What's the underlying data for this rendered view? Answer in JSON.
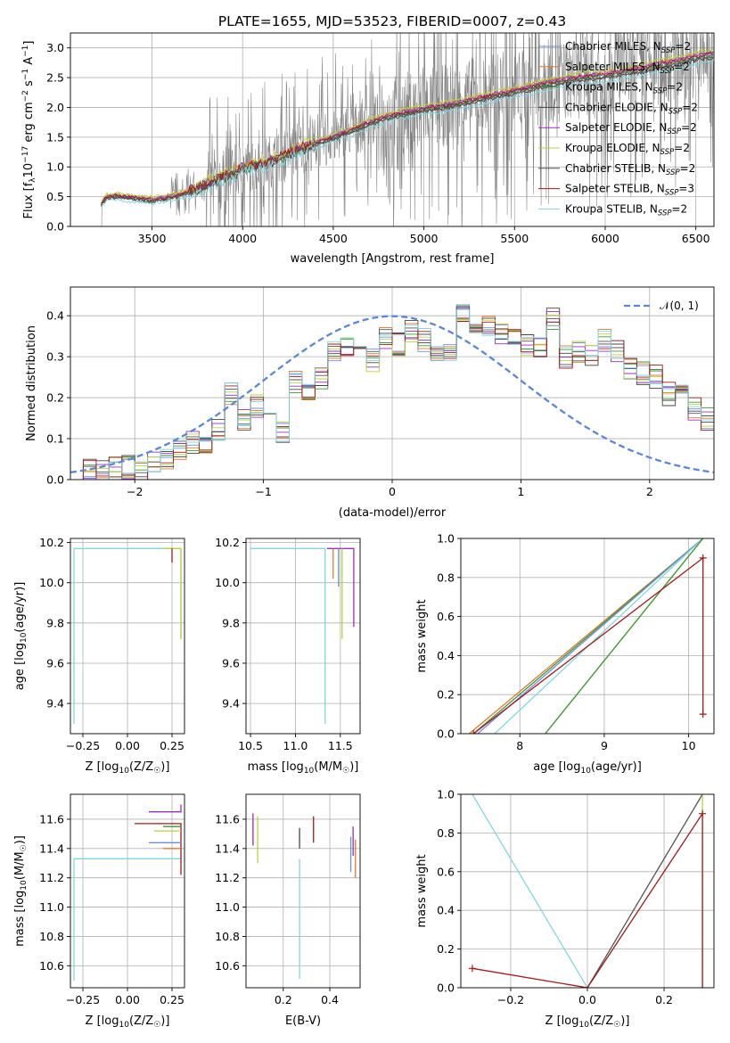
{
  "palette": [
    "#6f8fe0",
    "#e0782a",
    "#3a9a3a",
    "#444444",
    "#9a2ec0",
    "#bcd23a",
    "#555555",
    "#a31919",
    "#7fd8e0"
  ],
  "chart_data": [
    {
      "id": "spectrum",
      "type": "line",
      "title": "PLATE=1655, MJD=53523, FIBERID=0007, z=0.43",
      "xlabel": "wavelength [Angstrom, rest frame]",
      "ylabel": "Flux [f",
      "ylabel_parts": [
        "Flux [f",
        "λ",
        "10",
        "−17",
        " erg cm",
        "−2",
        " s",
        "−1",
        " A",
        "−1",
        "]"
      ],
      "xlim": [
        3050,
        6600
      ],
      "ylim": [
        0,
        3.25
      ],
      "xticks": [
        3500,
        4000,
        4500,
        5000,
        5500,
        6000,
        6500
      ],
      "yticks": [
        0.0,
        0.5,
        1.0,
        1.5,
        2.0,
        2.5,
        3.0
      ],
      "xtick_labels": [
        "3500",
        "4000",
        "4500",
        "5000",
        "5500",
        "6000",
        "6500"
      ],
      "ytick_labels": [
        "0.0",
        "0.5",
        "1.0",
        "1.5",
        "2.0",
        "2.5",
        "3.0"
      ],
      "legend_position": "upper-right",
      "legend": [
        {
          "label": "Chabrier MILES, N",
          "sub": "SSP",
          "suffix": "=2",
          "color": "#6f8fe0"
        },
        {
          "label": "Salpeter MILES, N",
          "sub": "SSP",
          "suffix": "=2",
          "color": "#e0782a"
        },
        {
          "label": "Kroupa MILES, N",
          "sub": "SSP",
          "suffix": "=2",
          "color": "#3a9a3a"
        },
        {
          "label": "Chabrier ELODIE, N",
          "sub": "SSP",
          "suffix": "=2",
          "color": "#444444"
        },
        {
          "label": "Salpeter ELODIE, N",
          "sub": "SSP",
          "suffix": "=2",
          "color": "#9a2ec0"
        },
        {
          "label": "Kroupa ELODIE, N",
          "sub": "SSP",
          "suffix": "=2",
          "color": "#bcd23a"
        },
        {
          "label": "Chabrier STELIB, N",
          "sub": "SSP",
          "suffix": "=2",
          "color": "#555555"
        },
        {
          "label": "Salpeter STELIB, N",
          "sub": "SSP",
          "suffix": "=3",
          "color": "#a31919"
        },
        {
          "label": "Kroupa STELIB, N",
          "sub": "SSP",
          "suffix": "=2",
          "color": "#7fd8e0"
        }
      ],
      "data_series": {
        "name": "",
        "color": "#808080",
        "x_range": [
          3220,
          6600
        ]
      },
      "model_continuum": {
        "x": [
          3220,
          3250,
          3300,
          3400,
          3500,
          3600,
          3700,
          3800,
          3850,
          3900,
          3950,
          4000,
          4100,
          4200,
          4300,
          4400,
          4500,
          4600,
          4700,
          4800,
          4900,
          5000,
          5100,
          5200,
          5300,
          5400,
          5500,
          5600,
          5700,
          5800,
          5900,
          6000,
          6100,
          6200,
          6300,
          6400,
          6500,
          6600
        ],
        "y": [
          0.4,
          0.5,
          0.52,
          0.48,
          0.45,
          0.5,
          0.58,
          0.72,
          0.78,
          0.85,
          0.9,
          0.98,
          1.05,
          1.15,
          1.3,
          1.4,
          1.5,
          1.62,
          1.75,
          1.85,
          1.92,
          1.98,
          2.02,
          2.08,
          2.15,
          2.22,
          2.28,
          2.35,
          2.42,
          2.48,
          2.52,
          2.55,
          2.6,
          2.65,
          2.72,
          2.78,
          2.85,
          2.9
        ]
      }
    },
    {
      "id": "residuals",
      "type": "bar",
      "xlabel": "(data-model)/error",
      "ylabel": "Normed distribution",
      "xlim": [
        -2.5,
        2.5
      ],
      "ylim": [
        0,
        0.47
      ],
      "xticks": [
        -2,
        -1,
        0,
        1,
        2
      ],
      "yticks": [
        0.0,
        0.1,
        0.2,
        0.3,
        0.4
      ],
      "xtick_labels": [
        "−2",
        "−1",
        "0",
        "1",
        "2"
      ],
      "ytick_labels": [
        "0.0",
        "0.1",
        "0.2",
        "0.3",
        "0.4"
      ],
      "legend_position": "upper-right",
      "legend": [
        {
          "label": "𝒩(0, 1)",
          "color": "#5b87d6",
          "style": "dashed"
        }
      ],
      "bin_width": 0.1,
      "bin_start": -2.5,
      "values": [
        0.02,
        0.02,
        0.025,
        0.03,
        0.03,
        0.02,
        0.04,
        0.05,
        0.07,
        0.09,
        0.08,
        0.12,
        0.21,
        0.15,
        0.18,
        0.16,
        0.12,
        0.24,
        0.21,
        0.25,
        0.31,
        0.33,
        0.32,
        0.29,
        0.35,
        0.33,
        0.36,
        0.34,
        0.32,
        0.31,
        0.4,
        0.35,
        0.37,
        0.36,
        0.34,
        0.33,
        0.32,
        0.39,
        0.3,
        0.31,
        0.3,
        0.34,
        0.31,
        0.27,
        0.26,
        0.25,
        0.21,
        0.22,
        0.17,
        0.15
      ]
    },
    {
      "id": "age-vs-Z",
      "type": "line",
      "xlabel": "Z [log",
      "xlabel_parts": [
        "Z [log",
        "10",
        "(Z/Z",
        "☉",
        ")]"
      ],
      "ylabel_parts": [
        "age  [log",
        "10",
        "(age/yr)]"
      ],
      "xlim": [
        -0.32,
        0.32
      ],
      "ylim": [
        9.25,
        10.22
      ],
      "xticks": [
        -0.25,
        0.0,
        0.25
      ],
      "yticks": [
        9.4,
        9.6,
        9.8,
        10.0,
        10.2
      ],
      "xtick_labels": [
        "−0.25",
        "0.00",
        "0.25"
      ],
      "ytick_labels": [
        "9.4",
        "9.6",
        "9.8",
        "10.0",
        "10.2"
      ],
      "series": [
        {
          "name": "",
          "color": "#7fd8e0",
          "x": [
            -0.3,
            -0.3,
            0.3,
            0.3
          ],
          "y": [
            9.3,
            10.17,
            10.17,
            9.72
          ]
        },
        {
          "name": "",
          "color": "#bcd23a",
          "x": [
            0.2,
            0.3,
            0.3
          ],
          "y": [
            10.17,
            10.17,
            9.72
          ]
        },
        {
          "name": "",
          "color": "#a31919",
          "x": [
            0.25,
            0.25
          ],
          "y": [
            10.17,
            10.1
          ]
        }
      ]
    },
    {
      "id": "age-vs-mass",
      "type": "line",
      "xlabel_parts": [
        "mass [log",
        "10",
        "(M/M",
        "☉",
        ")]"
      ],
      "xlim": [
        10.45,
        11.72
      ],
      "ylim": [
        9.25,
        10.22
      ],
      "xticks": [
        10.5,
        11.0,
        11.5
      ],
      "yticks": [
        9.4,
        9.6,
        9.8,
        10.0,
        10.2
      ],
      "xtick_labels": [
        "10.5",
        "11.0",
        "11.5"
      ],
      "ytick_labels": [
        "9.4",
        "9.6",
        "9.8",
        "10.0",
        "10.2"
      ],
      "series": [
        {
          "name": "",
          "color": "#7fd8e0",
          "x": [
            10.5,
            11.33,
            11.33
          ],
          "y": [
            10.17,
            10.17,
            9.3
          ]
        },
        {
          "name": "",
          "color": "#9a2ec0",
          "x": [
            11.35,
            11.65,
            11.65
          ],
          "y": [
            10.17,
            10.17,
            9.78
          ]
        },
        {
          "name": "",
          "color": "#bcd23a",
          "x": [
            11.52,
            11.52
          ],
          "y": [
            10.17,
            9.72
          ]
        },
        {
          "name": "",
          "color": "#e0782a",
          "x": [
            11.42,
            11.42
          ],
          "y": [
            10.17,
            10.02
          ]
        },
        {
          "name": "",
          "color": "#6f8fe0",
          "x": [
            11.48,
            11.48
          ],
          "y": [
            10.17,
            9.98
          ]
        }
      ]
    },
    {
      "id": "massweight-vs-age",
      "type": "line",
      "xlabel_parts": [
        "age  [log",
        "10",
        "(age/yr)]"
      ],
      "ylabel": "mass weight",
      "xlim": [
        7.3,
        10.3
      ],
      "ylim": [
        0,
        1
      ],
      "xticks": [
        8,
        9,
        10
      ],
      "yticks": [
        0.0,
        0.2,
        0.4,
        0.6,
        0.8,
        1.0
      ],
      "xtick_labels": [
        "8",
        "9",
        "10"
      ],
      "ytick_labels": [
        "0.0",
        "0.2",
        "0.4",
        "0.6",
        "0.8",
        "1.0"
      ],
      "series": [
        {
          "name": "",
          "color": "#e0782a",
          "x": [
            7.4,
            10.17
          ],
          "y": [
            0,
            1
          ]
        },
        {
          "name": "",
          "color": "#3a9a3a",
          "x": [
            7.45,
            10.17
          ],
          "y": [
            0,
            1
          ]
        },
        {
          "name": "",
          "color": "#6f8fe0",
          "x": [
            7.5,
            10.17
          ],
          "y": [
            0,
            1
          ]
        },
        {
          "name": "",
          "color": "#7fd8e0",
          "x": [
            7.7,
            10.17
          ],
          "y": [
            0,
            1
          ]
        },
        {
          "name": "",
          "color": "#bcd23a",
          "x": [
            8.3,
            10.17
          ],
          "y": [
            0,
            1
          ]
        },
        {
          "name": "",
          "color": "#3a9a3a",
          "x": [
            8.3,
            10.17
          ],
          "y": [
            0,
            1
          ]
        },
        {
          "name": "",
          "color": "#a31919",
          "x": [
            7.45,
            10.17,
            10.17
          ],
          "y": [
            0,
            0.9,
            0.1
          ]
        }
      ]
    },
    {
      "id": "mass-vs-Z",
      "type": "line",
      "xlabel_parts": [
        "Z [log",
        "10",
        "(Z/Z",
        "☉",
        ")]"
      ],
      "ylabel_parts": [
        "mass [log",
        "10",
        "(M/M",
        "☉",
        ")]"
      ],
      "xlim": [
        -0.32,
        0.32
      ],
      "ylim": [
        10.45,
        11.77
      ],
      "xticks": [
        -0.25,
        0.0,
        0.25
      ],
      "yticks": [
        10.6,
        10.8,
        11.0,
        11.2,
        11.4,
        11.6
      ],
      "xtick_labels": [
        "−0.25",
        "0.00",
        "0.25"
      ],
      "ytick_labels": [
        "10.6",
        "10.8",
        "11.0",
        "11.2",
        "11.4",
        "11.6"
      ],
      "series": [
        {
          "name": "",
          "color": "#7fd8e0",
          "x": [
            -0.3,
            -0.3,
            0.3
          ],
          "y": [
            10.5,
            11.33,
            11.33
          ]
        },
        {
          "name": "",
          "color": "#9a2ec0",
          "x": [
            0.12,
            0.3,
            0.3
          ],
          "y": [
            11.65,
            11.65,
            11.7
          ]
        },
        {
          "name": "",
          "color": "#a31919",
          "x": [
            0.04,
            0.3,
            0.3
          ],
          "y": [
            11.57,
            11.57,
            11.22
          ]
        },
        {
          "name": "",
          "color": "#6f8fe0",
          "x": [
            0.12,
            0.3
          ],
          "y": [
            11.44,
            11.44
          ]
        },
        {
          "name": "",
          "color": "#e0782a",
          "x": [
            0.2,
            0.3
          ],
          "y": [
            11.4,
            11.4
          ]
        },
        {
          "name": "",
          "color": "#3a9a3a",
          "x": [
            0.2,
            0.3
          ],
          "y": [
            11.55,
            11.55
          ]
        },
        {
          "name": "",
          "color": "#bcd23a",
          "x": [
            0.15,
            0.3
          ],
          "y": [
            11.52,
            11.52
          ]
        }
      ]
    },
    {
      "id": "mass-vs-EBV",
      "type": "scatter",
      "xlabel": "E(B-V)",
      "xlim": [
        0.04,
        0.53
      ],
      "ylim": [
        10.45,
        11.77
      ],
      "xticks": [
        0.2,
        0.4
      ],
      "yticks": [
        10.6,
        10.8,
        11.0,
        11.2,
        11.4,
        11.6
      ],
      "xtick_labels": [
        "0.2",
        "0.4"
      ],
      "ytick_labels": [
        "10.6",
        "10.8",
        "11.0",
        "11.2",
        "11.4",
        "11.6"
      ],
      "series": [
        {
          "name": "",
          "color": "#9a2ec0",
          "x": [
            0.07
          ],
          "y": [
            11.53
          ],
          "err": [
            0.11
          ]
        },
        {
          "name": "",
          "color": "#bcd23a",
          "x": [
            0.09
          ],
          "y": [
            11.46
          ],
          "err": [
            0.16
          ]
        },
        {
          "name": "",
          "color": "#444444",
          "x": [
            0.27
          ],
          "y": [
            11.47
          ],
          "err": [
            0.07
          ]
        },
        {
          "name": "",
          "color": "#7fd8e0",
          "x": [
            0.27
          ],
          "y": [
            10.92
          ],
          "err": [
            0.41
          ]
        },
        {
          "name": "",
          "color": "#a31919",
          "x": [
            0.33
          ],
          "y": [
            11.53
          ],
          "err": [
            0.09
          ]
        },
        {
          "name": "",
          "color": "#6f8fe0",
          "x": [
            0.49
          ],
          "y": [
            11.36
          ],
          "err": [
            0.12
          ]
        },
        {
          "name": "",
          "color": "#e0782a",
          "x": [
            0.51
          ],
          "y": [
            11.33
          ],
          "err": [
            0.13
          ]
        },
        {
          "name": "",
          "color": "#9a2ec0",
          "x": [
            0.5
          ],
          "y": [
            11.45
          ],
          "err": [
            0.1
          ]
        }
      ]
    },
    {
      "id": "massweight-vs-Z",
      "type": "line",
      "xlabel_parts": [
        "Z [log",
        "10",
        "(Z/Z",
        "☉",
        ")]"
      ],
      "ylabel": "mass weight",
      "xlim": [
        -0.33,
        0.33
      ],
      "ylim": [
        0,
        1
      ],
      "xticks": [
        -0.2,
        0.0,
        0.2
      ],
      "yticks": [
        0.0,
        0.2,
        0.4,
        0.6,
        0.8,
        1.0
      ],
      "xtick_labels": [
        "−0.2",
        "0.0",
        "0.2"
      ],
      "ytick_labels": [
        "0.0",
        "0.2",
        "0.4",
        "0.6",
        "0.8",
        "1.0"
      ],
      "series": [
        {
          "name": "",
          "color": "#7fd8e0",
          "x": [
            -0.3,
            0.0
          ],
          "y": [
            1.0,
            0.0
          ]
        },
        {
          "name": "",
          "color": "#555555",
          "x": [
            0.0,
            0.3
          ],
          "y": [
            0.0,
            1.0
          ]
        },
        {
          "name": "",
          "color": "#bcd23a",
          "x": [
            0.3,
            0.3
          ],
          "y": [
            0.0,
            1.0
          ]
        },
        {
          "name": "",
          "color": "#a31919",
          "x": [
            -0.3,
            0.0,
            0.3,
            0.3
          ],
          "y": [
            0.1,
            0.0,
            0.9,
            0.0
          ]
        }
      ]
    }
  ]
}
